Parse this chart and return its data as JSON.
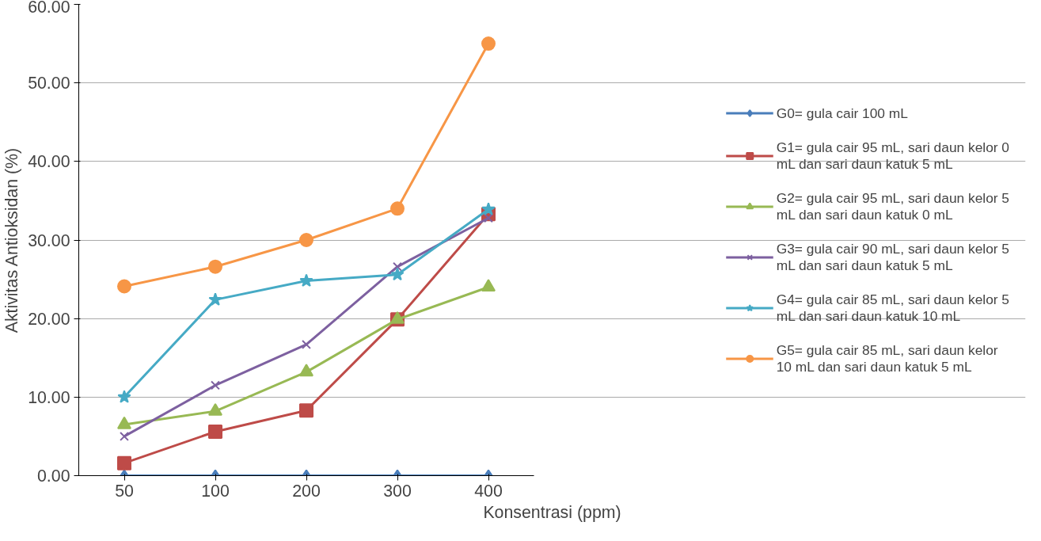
{
  "chart_data": {
    "type": "line",
    "xlabel": "Konsentrasi (ppm)",
    "ylabel": "Aktivitas Antioksidan (%)",
    "categories": [
      "50",
      "100",
      "200",
      "300",
      "400"
    ],
    "ylim": [
      0,
      60
    ],
    "yticks": [
      {
        "value": 0,
        "label": "0.00"
      },
      {
        "value": 10,
        "label": "10.00"
      },
      {
        "value": 20,
        "label": "20.00"
      },
      {
        "value": 30,
        "label": "30.00"
      },
      {
        "value": 40,
        "label": "40.00"
      },
      {
        "value": 50,
        "label": "50.00"
      },
      {
        "value": 60,
        "label": "60.00"
      }
    ],
    "grid": "y",
    "legend": "right",
    "line_style": "solid",
    "series": [
      {
        "name": "G0= gula cair 100 mL",
        "color": "#4a7ebb",
        "marker": "diamond",
        "values": [
          0,
          0,
          0,
          0,
          0
        ]
      },
      {
        "name": "G1= gula cair 95 mL, sari daun kelor 0 mL dan sari daun katuk 5 mL",
        "color": "#be4b48",
        "marker": "square",
        "values": [
          1.6,
          5.6,
          8.3,
          19.9,
          33.3
        ]
      },
      {
        "name": "G2= gula cair 95 mL, sari daun kelor 5 mL dan sari daun katuk 0 mL",
        "color": "#98b954",
        "marker": "triangle",
        "values": [
          6.5,
          8.2,
          13.2,
          19.9,
          24.0
        ]
      },
      {
        "name": "G3= gula cair 90 mL, sari daun kelor 5 mL dan sari daun katuk 5 mL",
        "color": "#7d60a0",
        "marker": "cross",
        "values": [
          5.0,
          11.5,
          16.7,
          26.6,
          32.8
        ]
      },
      {
        "name": "G4= gula cair 85 mL, sari daun kelor 5 mL dan sari daun katuk 10 mL",
        "color": "#46aac5",
        "marker": "star",
        "values": [
          10.0,
          22.4,
          24.8,
          25.6,
          33.9
        ]
      },
      {
        "name": "G5= gula cair 85 mL, sari daun kelor 10 mL dan sari daun katuk 5 mL",
        "color": "#f79646",
        "marker": "circle",
        "values": [
          24.1,
          26.6,
          30.0,
          34.0,
          55.0
        ]
      }
    ]
  }
}
